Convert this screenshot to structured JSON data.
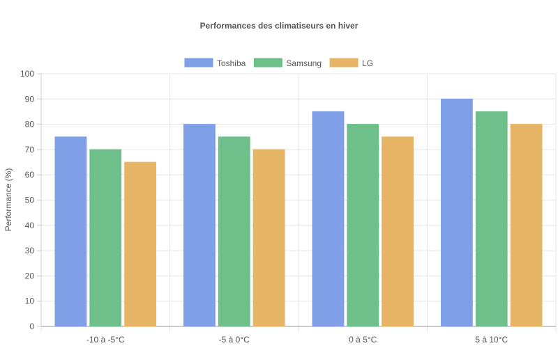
{
  "chart_data": {
    "type": "bar",
    "title": "Performances des climatiseurs en hiver",
    "xlabel": "",
    "ylabel": "Performance (%)",
    "ylim": [
      0,
      100
    ],
    "yticks": [
      0,
      10,
      20,
      30,
      40,
      50,
      60,
      70,
      80,
      90,
      100
    ],
    "grid": true,
    "legend_position": "top-center",
    "categories": [
      "-10 à -5°C",
      "-5 à 0°C",
      "0 à 5°C",
      "5 à 10°C"
    ],
    "series": [
      {
        "name": "Toshiba",
        "values": [
          75,
          80,
          85,
          90
        ],
        "color": "#7f9fe6"
      },
      {
        "name": "Samsung",
        "values": [
          70,
          75,
          80,
          85
        ],
        "color": "#6fbf8b"
      },
      {
        "name": "LG",
        "values": [
          65,
          70,
          75,
          80
        ],
        "color": "#e6b566"
      }
    ]
  }
}
